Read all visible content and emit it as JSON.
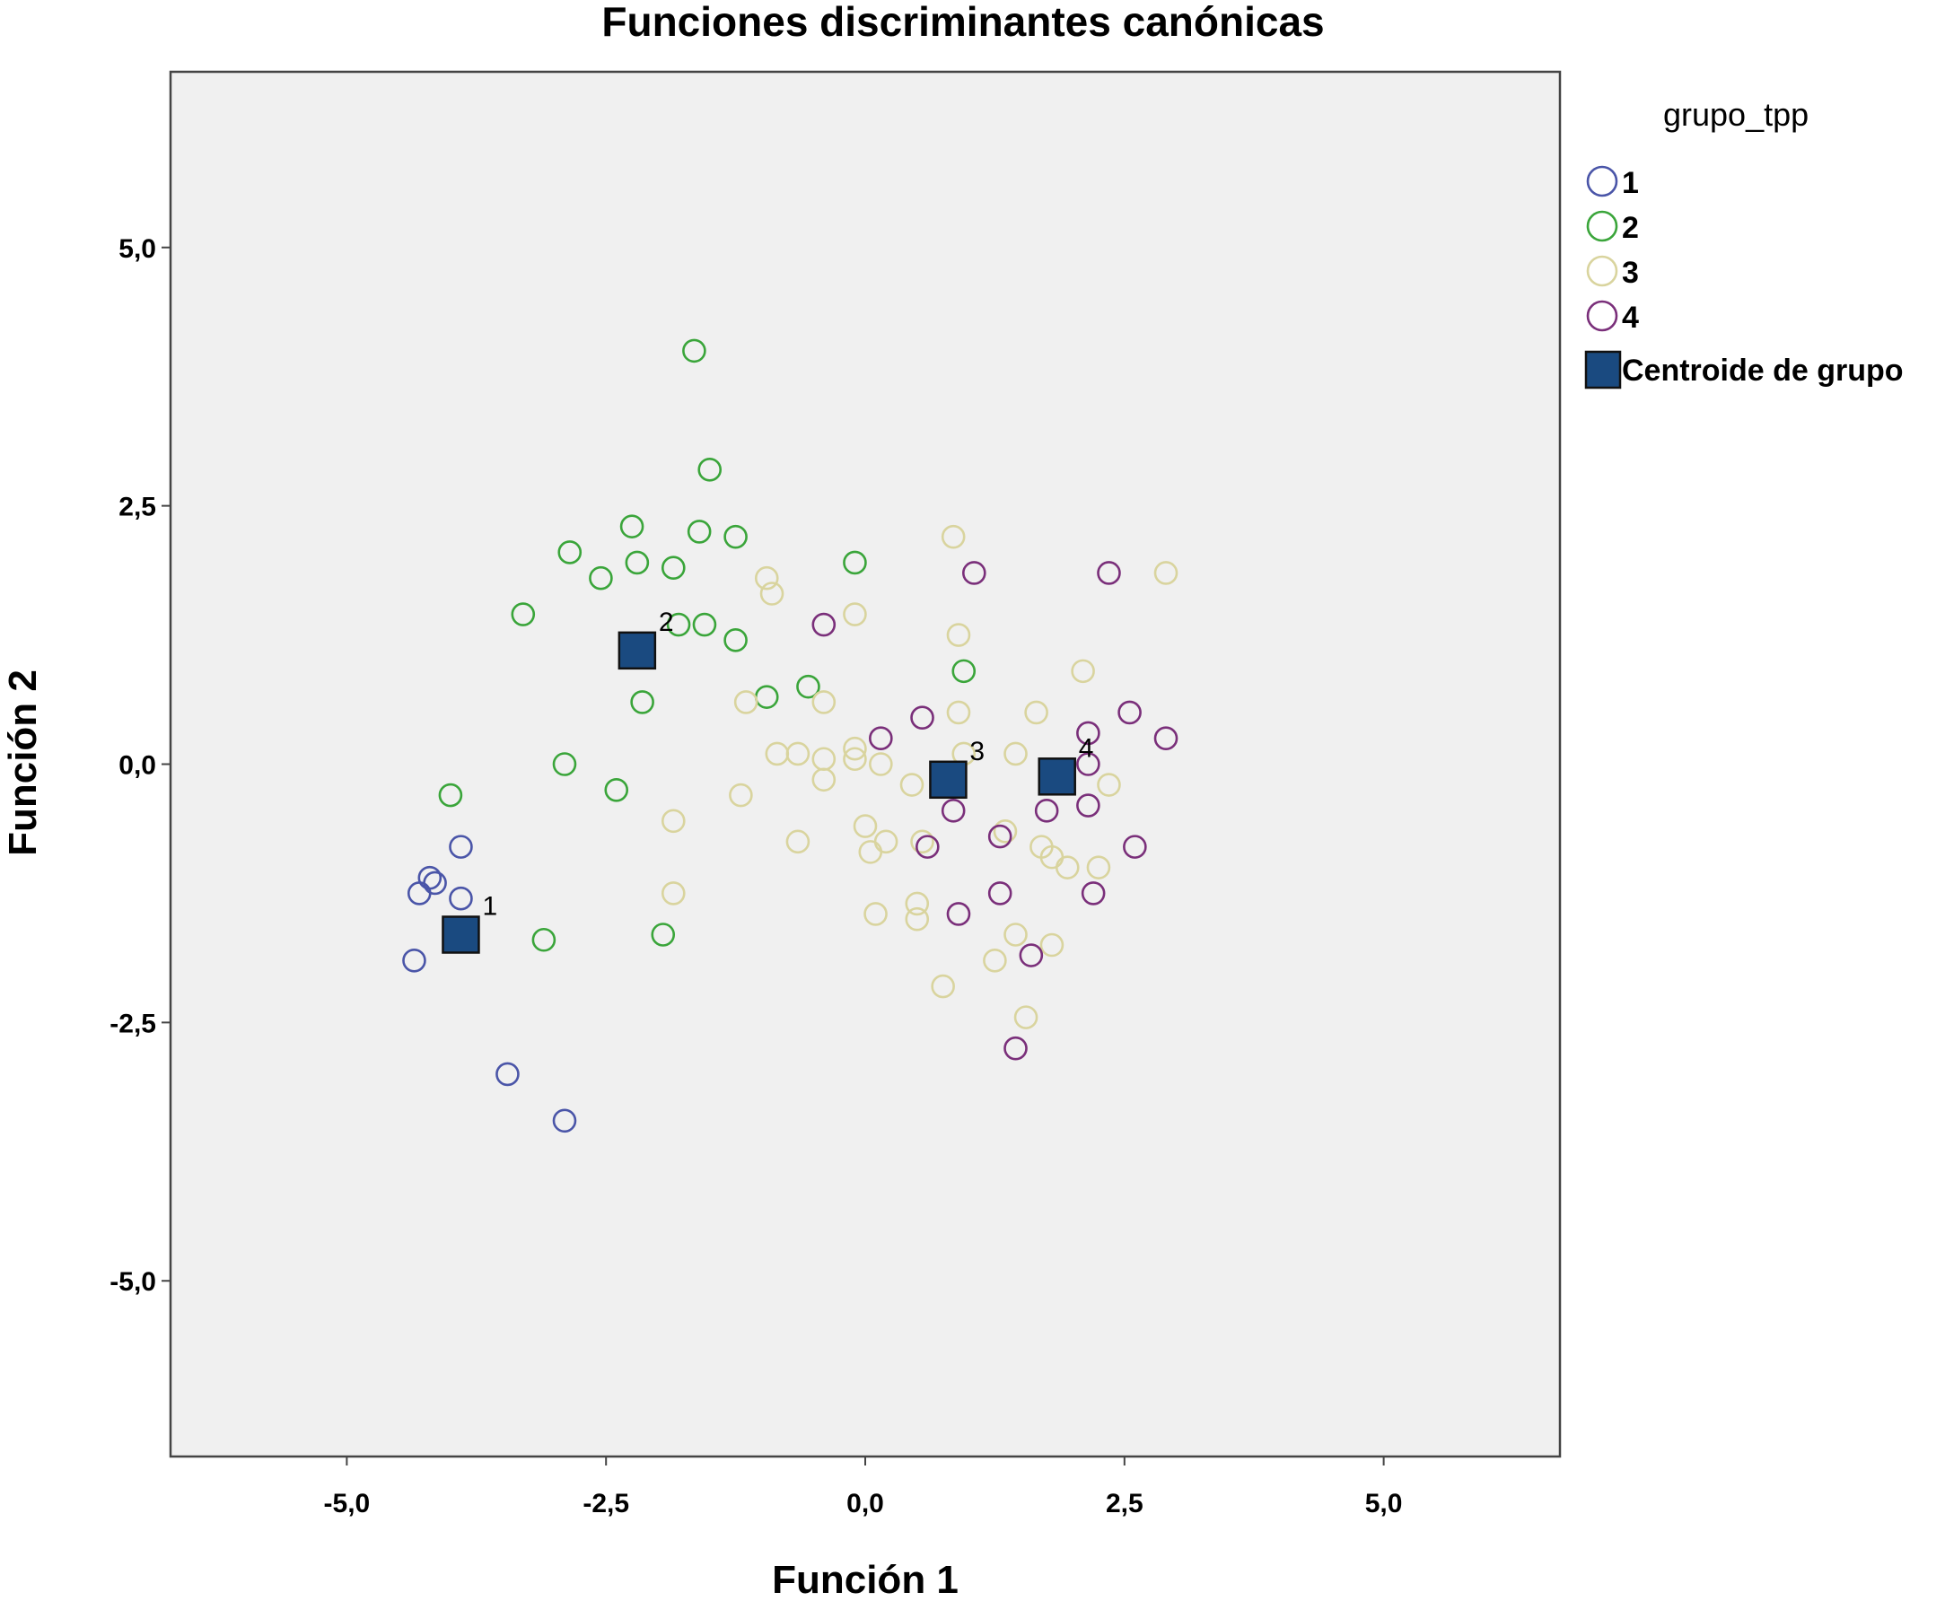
{
  "chart_data": {
    "type": "scatter",
    "title": "Funciones discriminantes canónicas",
    "xlabel": "Función 1",
    "ylabel": "Función 2",
    "xlim": [
      -6.7,
      6.7
    ],
    "ylim": [
      -6.7,
      6.7
    ],
    "xticks": [
      -5.0,
      -2.5,
      0.0,
      2.5,
      5.0
    ],
    "yticks": [
      -5.0,
      -2.5,
      0.0,
      2.5,
      5.0
    ],
    "xtick_labels": [
      "-5,0",
      "-2,5",
      "0,0",
      "2,5",
      "5,0"
    ],
    "ytick_labels": [
      "-5,0",
      "-2,5",
      "0,0",
      "2,5",
      "5,0"
    ],
    "grid": false,
    "legend_position": "right",
    "legend_title": "grupo_tpp",
    "plot_background": "#f0f0f0",
    "series": [
      {
        "name": "1",
        "color": "#4a55a8",
        "marker": "open-circle",
        "points": [
          [
            -4.35,
            -1.9
          ],
          [
            -3.9,
            -0.8
          ],
          [
            -4.2,
            -1.1
          ],
          [
            -4.3,
            -1.25
          ],
          [
            -4.15,
            -1.15
          ],
          [
            -3.9,
            -1.3
          ],
          [
            -3.45,
            -3.0
          ],
          [
            -2.9,
            -3.45
          ]
        ]
      },
      {
        "name": "2",
        "color": "#3aa53a",
        "marker": "open-circle",
        "points": [
          [
            -1.65,
            4.0
          ],
          [
            -1.5,
            2.85
          ],
          [
            -2.25,
            2.3
          ],
          [
            -1.6,
            2.25
          ],
          [
            -1.25,
            2.2
          ],
          [
            -2.85,
            2.05
          ],
          [
            -2.2,
            1.95
          ],
          [
            -1.85,
            1.9
          ],
          [
            -0.1,
            1.95
          ],
          [
            -2.55,
            1.8
          ],
          [
            -3.3,
            1.45
          ],
          [
            -1.8,
            1.35
          ],
          [
            -1.55,
            1.35
          ],
          [
            -1.25,
            1.2
          ],
          [
            -2.15,
            0.6
          ],
          [
            -0.95,
            0.65
          ],
          [
            -0.55,
            0.75
          ],
          [
            0.95,
            0.9
          ],
          [
            -2.9,
            0.0
          ],
          [
            -4.0,
            -0.3
          ],
          [
            -2.4,
            -0.25
          ],
          [
            -3.1,
            -1.7
          ],
          [
            -1.95,
            -1.65
          ]
        ]
      },
      {
        "name": "3",
        "color": "#d9d49e",
        "marker": "open-circle",
        "points": [
          [
            0.85,
            2.2
          ],
          [
            2.9,
            1.85
          ],
          [
            -0.95,
            1.8
          ],
          [
            -0.9,
            1.65
          ],
          [
            -0.1,
            1.45
          ],
          [
            0.9,
            1.25
          ],
          [
            2.1,
            0.9
          ],
          [
            -1.15,
            0.6
          ],
          [
            -0.4,
            0.6
          ],
          [
            0.9,
            0.5
          ],
          [
            1.65,
            0.5
          ],
          [
            -0.85,
            0.1
          ],
          [
            -0.65,
            0.1
          ],
          [
            -0.4,
            0.05
          ],
          [
            -0.1,
            0.15
          ],
          [
            -0.1,
            0.05
          ],
          [
            0.15,
            0.0
          ],
          [
            0.45,
            -0.2
          ],
          [
            0.95,
            0.1
          ],
          [
            1.45,
            0.1
          ],
          [
            2.35,
            -0.2
          ],
          [
            -1.2,
            -0.3
          ],
          [
            -0.4,
            -0.15
          ],
          [
            -0.65,
            -0.75
          ],
          [
            0.0,
            -0.6
          ],
          [
            0.05,
            -0.85
          ],
          [
            0.2,
            -0.75
          ],
          [
            0.55,
            -0.75
          ],
          [
            1.35,
            -0.65
          ],
          [
            1.7,
            -0.8
          ],
          [
            1.8,
            -0.9
          ],
          [
            1.95,
            -1.0
          ],
          [
            2.25,
            -1.0
          ],
          [
            -1.85,
            -0.55
          ],
          [
            -1.85,
            -1.25
          ],
          [
            0.5,
            -1.35
          ],
          [
            0.5,
            -1.5
          ],
          [
            0.1,
            -1.45
          ],
          [
            1.45,
            -1.65
          ],
          [
            1.8,
            -1.75
          ],
          [
            1.25,
            -1.9
          ],
          [
            0.75,
            -2.15
          ],
          [
            1.55,
            -2.45
          ]
        ]
      },
      {
        "name": "4",
        "color": "#7a2f7a",
        "marker": "open-circle",
        "points": [
          [
            1.05,
            1.85
          ],
          [
            2.35,
            1.85
          ],
          [
            -0.4,
            1.35
          ],
          [
            0.55,
            0.45
          ],
          [
            2.55,
            0.5
          ],
          [
            0.15,
            0.25
          ],
          [
            2.15,
            0.3
          ],
          [
            2.9,
            0.25
          ],
          [
            2.15,
            0.0
          ],
          [
            0.85,
            -0.45
          ],
          [
            1.75,
            -0.45
          ],
          [
            2.15,
            -0.4
          ],
          [
            1.3,
            -0.7
          ],
          [
            0.6,
            -0.8
          ],
          [
            2.6,
            -0.8
          ],
          [
            1.3,
            -1.25
          ],
          [
            2.2,
            -1.25
          ],
          [
            0.9,
            -1.45
          ],
          [
            1.6,
            -1.85
          ],
          [
            1.45,
            -2.75
          ]
        ]
      }
    ],
    "centroids": {
      "name": "Centroide de grupo",
      "color": "#1a4a80",
      "points": [
        {
          "label": "1",
          "x": -3.9,
          "y": -1.65
        },
        {
          "label": "2",
          "x": -2.2,
          "y": 1.1
        },
        {
          "label": "3",
          "x": 0.8,
          "y": -0.15
        },
        {
          "label": "4",
          "x": 1.85,
          "y": -0.12
        }
      ]
    }
  }
}
